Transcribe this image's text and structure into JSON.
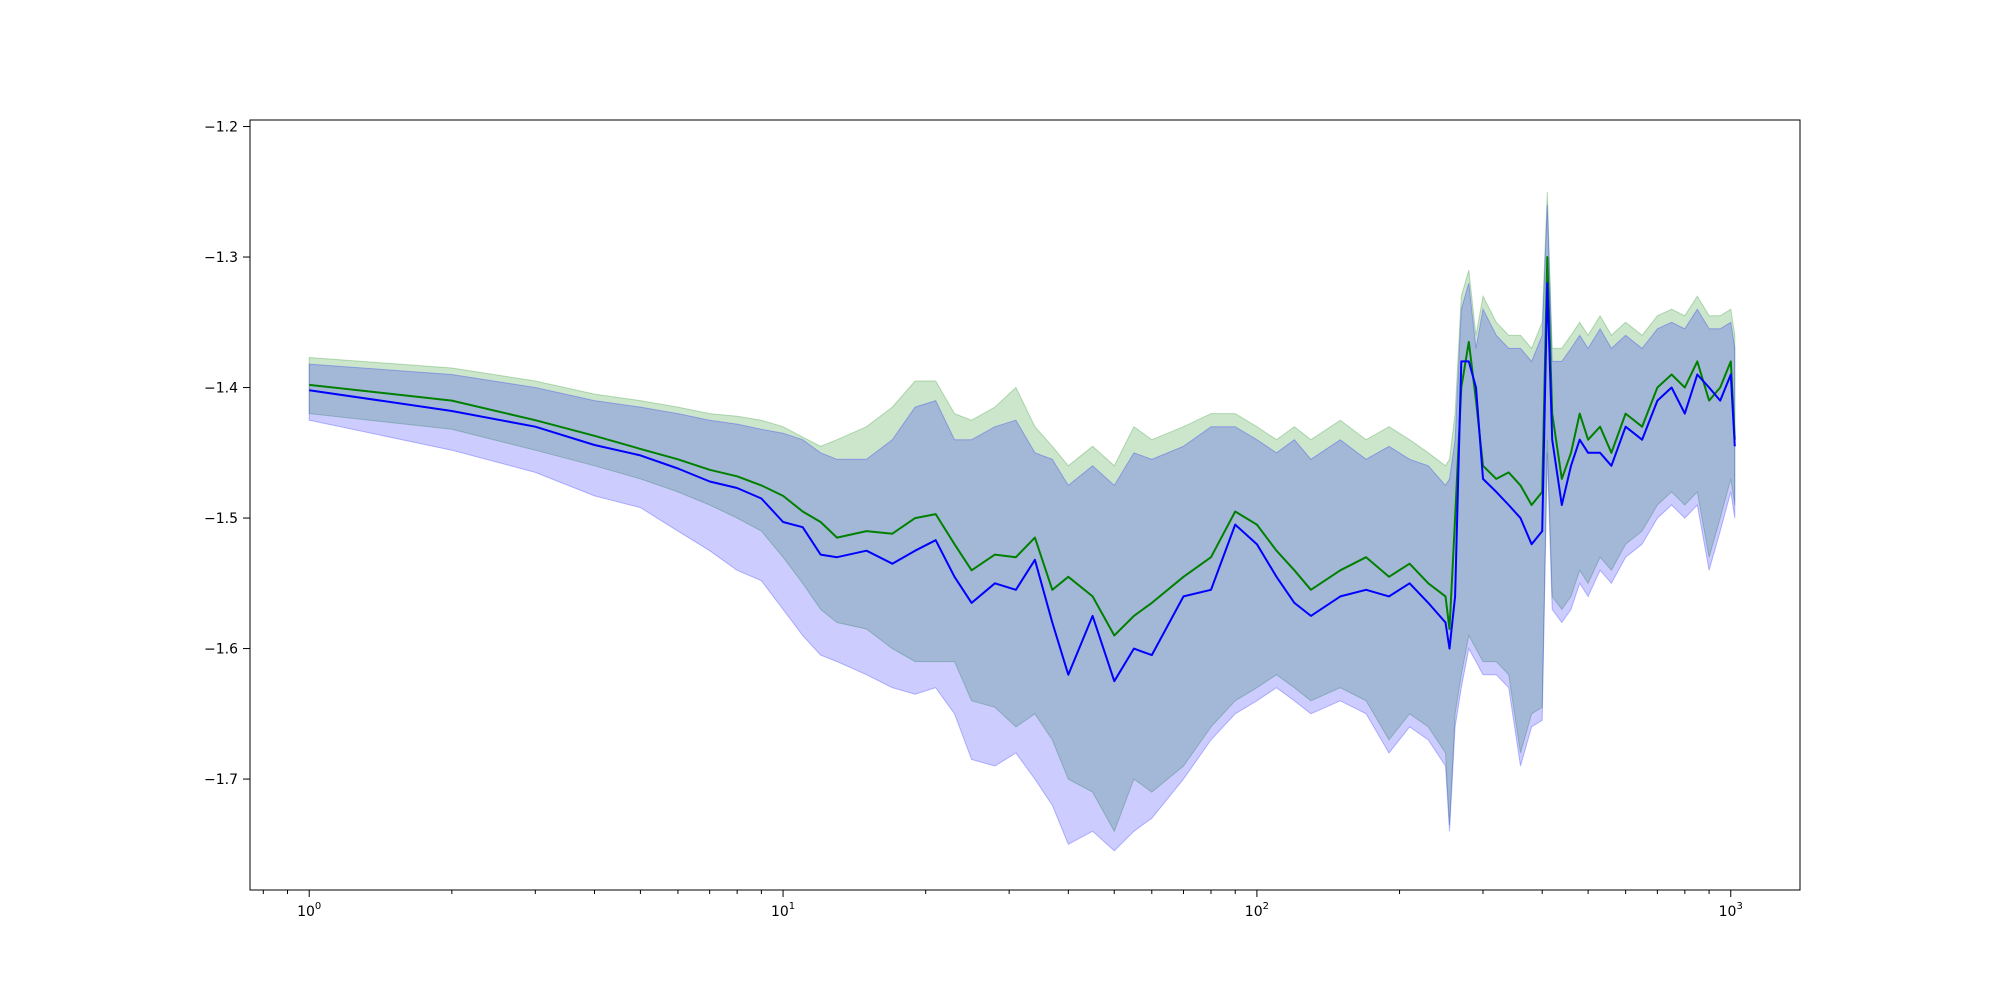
{
  "chart_data": {
    "type": "line",
    "title": "",
    "xlabel": "",
    "ylabel": "",
    "x_scale": "log",
    "xlim": [
      0.75,
      1400
    ],
    "ylim": [
      -1.785,
      -1.195
    ],
    "grid": false,
    "legend": "none",
    "x_ticks": [
      {
        "value": 1,
        "base": "10",
        "exp": "0"
      },
      {
        "value": 10,
        "base": "10",
        "exp": "1"
      },
      {
        "value": 100,
        "base": "10",
        "exp": "2"
      },
      {
        "value": 1000,
        "base": "10",
        "exp": "3"
      }
    ],
    "y_ticks": [
      {
        "value": -1.2,
        "label": "−1.2"
      },
      {
        "value": -1.3,
        "label": "−1.3"
      },
      {
        "value": -1.4,
        "label": "−1.4"
      },
      {
        "value": -1.5,
        "label": "−1.5"
      },
      {
        "value": -1.6,
        "label": "−1.6"
      },
      {
        "value": -1.7,
        "label": "−1.7"
      }
    ],
    "x": [
      1,
      2,
      3,
      4,
      5,
      6,
      7,
      8,
      9,
      10,
      11,
      12,
      13,
      15,
      17,
      19,
      21,
      23,
      25,
      28,
      31,
      34,
      37,
      40,
      45,
      50,
      55,
      60,
      70,
      80,
      90,
      100,
      110,
      120,
      130,
      150,
      170,
      190,
      210,
      230,
      250,
      255,
      262,
      270,
      280,
      290,
      300,
      320,
      340,
      360,
      380,
      400,
      410,
      420,
      440,
      460,
      480,
      500,
      530,
      560,
      600,
      650,
      700,
      750,
      800,
      850,
      900,
      950,
      1000,
      1020
    ],
    "series": [
      {
        "color": "#008000",
        "band_color": "#008000",
        "band_opacity": 0.2,
        "values": [
          -1.398,
          -1.41,
          -1.425,
          -1.437,
          -1.447,
          -1.455,
          -1.463,
          -1.468,
          -1.475,
          -1.483,
          -1.495,
          -1.503,
          -1.515,
          -1.51,
          -1.512,
          -1.5,
          -1.497,
          -1.52,
          -1.54,
          -1.528,
          -1.53,
          -1.515,
          -1.555,
          -1.545,
          -1.56,
          -1.59,
          -1.575,
          -1.565,
          -1.545,
          -1.53,
          -1.495,
          -1.505,
          -1.525,
          -1.54,
          -1.555,
          -1.54,
          -1.53,
          -1.545,
          -1.535,
          -1.55,
          -1.56,
          -1.585,
          -1.5,
          -1.4,
          -1.365,
          -1.41,
          -1.46,
          -1.47,
          -1.465,
          -1.475,
          -1.49,
          -1.48,
          -1.3,
          -1.42,
          -1.47,
          -1.45,
          -1.42,
          -1.44,
          -1.43,
          -1.45,
          -1.42,
          -1.43,
          -1.4,
          -1.39,
          -1.4,
          -1.38,
          -1.41,
          -1.4,
          -1.38,
          -1.44
        ],
        "upper": [
          -1.377,
          -1.385,
          -1.395,
          -1.405,
          -1.41,
          -1.415,
          -1.42,
          -1.422,
          -1.425,
          -1.43,
          -1.438,
          -1.445,
          -1.44,
          -1.43,
          -1.415,
          -1.395,
          -1.395,
          -1.42,
          -1.425,
          -1.415,
          -1.4,
          -1.43,
          -1.445,
          -1.46,
          -1.445,
          -1.46,
          -1.43,
          -1.44,
          -1.43,
          -1.42,
          -1.42,
          -1.43,
          -1.44,
          -1.43,
          -1.44,
          -1.425,
          -1.44,
          -1.43,
          -1.44,
          -1.45,
          -1.46,
          -1.455,
          -1.42,
          -1.33,
          -1.31,
          -1.36,
          -1.33,
          -1.35,
          -1.36,
          -1.36,
          -1.37,
          -1.35,
          -1.25,
          -1.37,
          -1.37,
          -1.36,
          -1.35,
          -1.36,
          -1.345,
          -1.36,
          -1.35,
          -1.36,
          -1.345,
          -1.34,
          -1.345,
          -1.33,
          -1.345,
          -1.345,
          -1.34,
          -1.36
        ],
        "lower": [
          -1.42,
          -1.432,
          -1.448,
          -1.46,
          -1.47,
          -1.48,
          -1.49,
          -1.5,
          -1.51,
          -1.53,
          -1.55,
          -1.57,
          -1.58,
          -1.585,
          -1.6,
          -1.61,
          -1.61,
          -1.61,
          -1.64,
          -1.645,
          -1.66,
          -1.65,
          -1.67,
          -1.7,
          -1.71,
          -1.74,
          -1.7,
          -1.71,
          -1.69,
          -1.66,
          -1.64,
          -1.63,
          -1.62,
          -1.63,
          -1.64,
          -1.63,
          -1.64,
          -1.67,
          -1.65,
          -1.66,
          -1.68,
          -1.735,
          -1.65,
          -1.62,
          -1.59,
          -1.6,
          -1.61,
          -1.61,
          -1.62,
          -1.68,
          -1.65,
          -1.645,
          -1.44,
          -1.56,
          -1.57,
          -1.56,
          -1.54,
          -1.55,
          -1.53,
          -1.54,
          -1.52,
          -1.51,
          -1.49,
          -1.48,
          -1.49,
          -1.48,
          -1.53,
          -1.5,
          -1.47,
          -1.49
        ]
      },
      {
        "color": "#0000ff",
        "band_color": "#0000ff",
        "band_opacity": 0.2,
        "values": [
          -1.402,
          -1.418,
          -1.43,
          -1.444,
          -1.452,
          -1.462,
          -1.472,
          -1.477,
          -1.485,
          -1.503,
          -1.507,
          -1.528,
          -1.53,
          -1.525,
          -1.535,
          -1.525,
          -1.517,
          -1.545,
          -1.565,
          -1.55,
          -1.555,
          -1.532,
          -1.58,
          -1.62,
          -1.575,
          -1.625,
          -1.6,
          -1.605,
          -1.56,
          -1.555,
          -1.505,
          -1.52,
          -1.545,
          -1.565,
          -1.575,
          -1.56,
          -1.555,
          -1.56,
          -1.55,
          -1.565,
          -1.58,
          -1.6,
          -1.56,
          -1.38,
          -1.38,
          -1.4,
          -1.47,
          -1.48,
          -1.49,
          -1.5,
          -1.52,
          -1.51,
          -1.32,
          -1.44,
          -1.49,
          -1.46,
          -1.44,
          -1.45,
          -1.45,
          -1.46,
          -1.43,
          -1.44,
          -1.41,
          -1.4,
          -1.42,
          -1.39,
          -1.4,
          -1.41,
          -1.39,
          -1.445
        ],
        "upper": [
          -1.382,
          -1.39,
          -1.4,
          -1.41,
          -1.415,
          -1.42,
          -1.425,
          -1.428,
          -1.432,
          -1.435,
          -1.44,
          -1.45,
          -1.455,
          -1.455,
          -1.44,
          -1.415,
          -1.41,
          -1.44,
          -1.44,
          -1.43,
          -1.425,
          -1.45,
          -1.455,
          -1.475,
          -1.46,
          -1.475,
          -1.45,
          -1.455,
          -1.445,
          -1.43,
          -1.43,
          -1.44,
          -1.45,
          -1.44,
          -1.455,
          -1.44,
          -1.455,
          -1.445,
          -1.455,
          -1.46,
          -1.475,
          -1.47,
          -1.44,
          -1.34,
          -1.32,
          -1.37,
          -1.34,
          -1.36,
          -1.37,
          -1.37,
          -1.38,
          -1.36,
          -1.26,
          -1.38,
          -1.38,
          -1.37,
          -1.36,
          -1.37,
          -1.355,
          -1.37,
          -1.36,
          -1.37,
          -1.355,
          -1.35,
          -1.355,
          -1.34,
          -1.355,
          -1.355,
          -1.35,
          -1.37
        ],
        "lower": [
          -1.425,
          -1.448,
          -1.465,
          -1.483,
          -1.492,
          -1.51,
          -1.525,
          -1.54,
          -1.548,
          -1.57,
          -1.59,
          -1.605,
          -1.61,
          -1.62,
          -1.63,
          -1.635,
          -1.63,
          -1.65,
          -1.685,
          -1.69,
          -1.68,
          -1.7,
          -1.72,
          -1.75,
          -1.74,
          -1.755,
          -1.74,
          -1.73,
          -1.7,
          -1.67,
          -1.65,
          -1.64,
          -1.63,
          -1.64,
          -1.65,
          -1.64,
          -1.65,
          -1.68,
          -1.66,
          -1.67,
          -1.69,
          -1.74,
          -1.66,
          -1.63,
          -1.6,
          -1.61,
          -1.62,
          -1.62,
          -1.63,
          -1.69,
          -1.66,
          -1.655,
          -1.45,
          -1.57,
          -1.58,
          -1.57,
          -1.55,
          -1.56,
          -1.54,
          -1.55,
          -1.53,
          -1.52,
          -1.5,
          -1.49,
          -1.5,
          -1.49,
          -1.54,
          -1.51,
          -1.48,
          -1.5
        ]
      }
    ]
  }
}
